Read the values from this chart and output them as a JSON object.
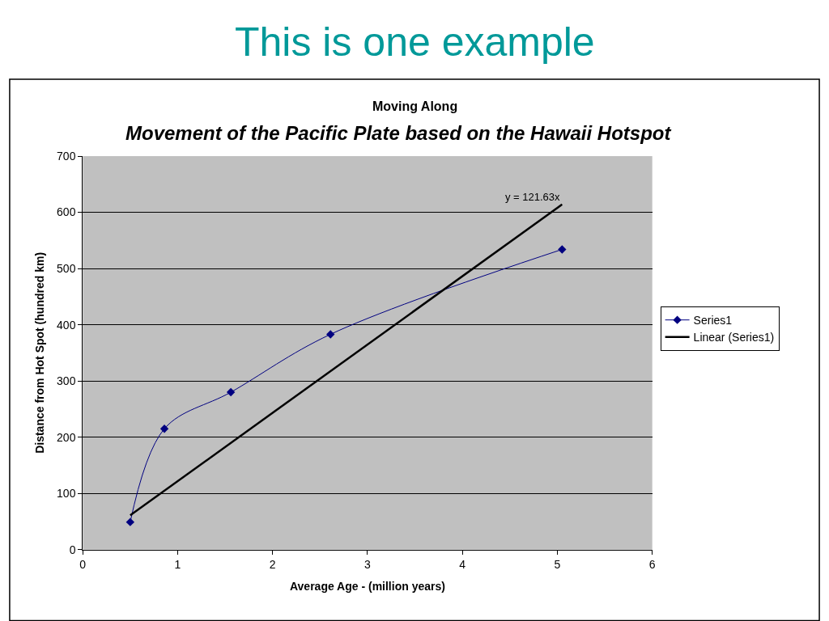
{
  "chart_data": {
    "type": "line",
    "title": "This is one example",
    "subtitle": "Moving Along",
    "xlabel": "Average Age - (million years)",
    "ylabel": "Distance from Hot Spot (hundred km)",
    "x": [
      0.5,
      0.86,
      1.56,
      2.61,
      5.05
    ],
    "series": [
      {
        "name": "Series1",
        "color": "#000080",
        "values": [
          49,
          215,
          280,
          383,
          534
        ],
        "marker": "diamond"
      },
      {
        "name": "Linear (Series1)",
        "type": "line",
        "color": "#000000",
        "x": [
          0.5,
          5.05
        ],
        "values": [
          61,
          614
        ],
        "marker": "none"
      }
    ],
    "annotations": [
      "Movement of the Pacific Plate based on the Hawaii Hotspot",
      {
        "text": "y = 121.63x",
        "x": 5.05,
        "y": 614
      }
    ],
    "xlim": [
      0,
      6
    ],
    "xticks": [
      0,
      1,
      2,
      3,
      4,
      5,
      6
    ],
    "ylim": [
      0,
      700
    ],
    "yticks": [
      0,
      100,
      200,
      300,
      400,
      500,
      600,
      700
    ],
    "grid": "y",
    "legend": "right"
  }
}
